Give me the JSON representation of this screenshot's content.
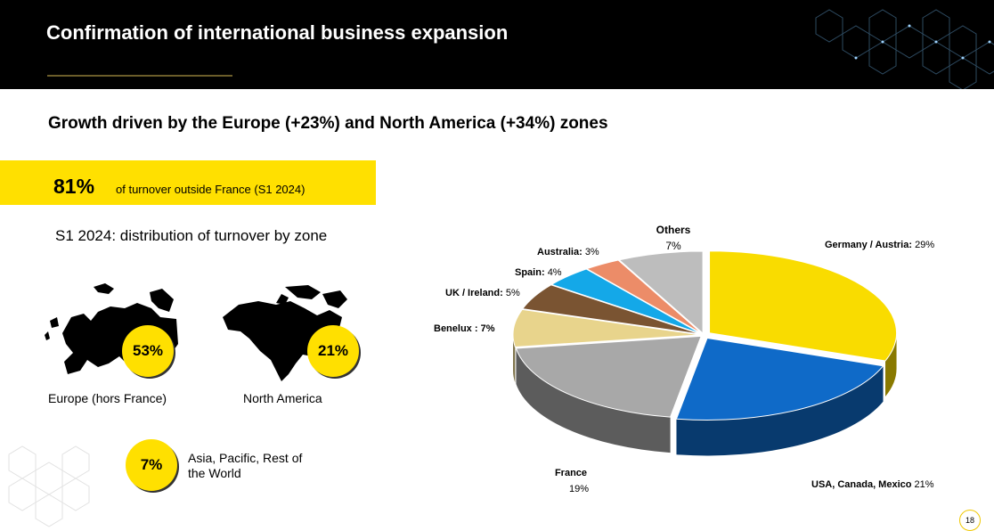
{
  "header": {
    "title": "Confirmation of international business expansion"
  },
  "subtitle": "Growth driven by the Europe (+23%) and North America (+34%) zones",
  "kpi": {
    "value": "81%",
    "label": "of turnover outside France (S1 2024)"
  },
  "section_title": "S1 2024: distribution of turnover by zone",
  "regions": [
    {
      "percent": "53%",
      "label": "Europe (hors France)"
    },
    {
      "percent": "21%",
      "label": "North America"
    },
    {
      "percent": "7%",
      "label": "Asia, Pacific, Rest of the World"
    }
  ],
  "page_number": "18",
  "colors": {
    "accent": "#ffe000",
    "header_bg": "#000000"
  },
  "chart_data": {
    "type": "pie",
    "title": "",
    "slices": [
      {
        "label": "Germany / Austria:",
        "value_text": "29%",
        "value": 29,
        "color": "#f9dc00"
      },
      {
        "label": "USA, Canada, Mexico",
        "value_text": "21%",
        "value": 21,
        "color": "#0f6ac8"
      },
      {
        "label": "France",
        "value_text": "19%",
        "value": 19,
        "color": "#a8a8a8"
      },
      {
        "label": "Benelux :",
        "value_text": "7%",
        "value": 7,
        "color": "#e8d48c"
      },
      {
        "label": "UK / Ireland:",
        "value_text": "5%",
        "value": 5,
        "color": "#7a5432"
      },
      {
        "label": "Spain:",
        "value_text": "4%",
        "value": 4,
        "color": "#14a8e8"
      },
      {
        "label": "Australia:",
        "value_text": "3%",
        "value": 3,
        "color": "#ec8c68"
      },
      {
        "label": "Others",
        "value_text": "7%",
        "value": 7,
        "color": "#bdbdbd"
      }
    ]
  }
}
